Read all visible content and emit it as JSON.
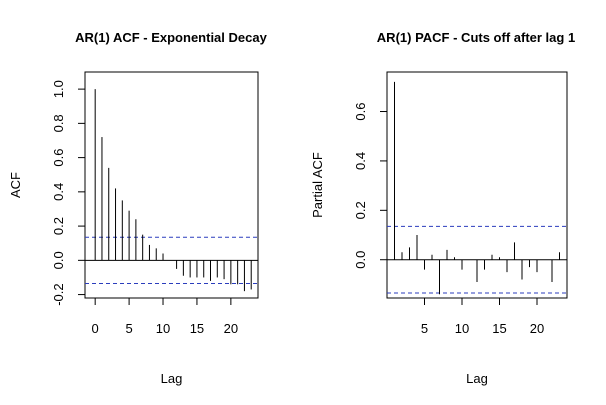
{
  "chart_data": [
    {
      "type": "bar",
      "title": "AR(1) ACF - Exponential Decay",
      "xlabel": "Lag",
      "ylabel": "ACF",
      "x_ticks": [
        0,
        5,
        10,
        15,
        20
      ],
      "y_ticks": [
        -0.2,
        0.0,
        0.2,
        0.4,
        0.6,
        0.8,
        1.0
      ],
      "y_tick_labels": [
        "-0.2",
        "0.0",
        "0.2",
        "0.4",
        "0.6",
        "0.8",
        "1.0"
      ],
      "xlim": [
        -1.5,
        24
      ],
      "ylim": [
        -0.22,
        1.1
      ],
      "confidence_bounds": [
        0.135,
        -0.135
      ],
      "lags": [
        0,
        1,
        2,
        3,
        4,
        5,
        6,
        7,
        8,
        9,
        10,
        11,
        12,
        13,
        14,
        15,
        16,
        17,
        18,
        19,
        20,
        21,
        22,
        23
      ],
      "values": [
        1.0,
        0.72,
        0.54,
        0.42,
        0.35,
        0.29,
        0.24,
        0.15,
        0.09,
        0.07,
        0.04,
        0.0,
        -0.05,
        -0.09,
        -0.1,
        -0.1,
        -0.1,
        -0.12,
        -0.1,
        -0.11,
        -0.14,
        -0.14,
        -0.18,
        -0.17
      ]
    },
    {
      "type": "bar",
      "title": "AR(1) PACF - Cuts off after lag 1",
      "xlabel": "Lag",
      "ylabel": "Partial ACF",
      "x_ticks": [
        5,
        10,
        15,
        20
      ],
      "y_ticks": [
        0.0,
        0.2,
        0.4,
        0.6
      ],
      "y_tick_labels": [
        "0.0",
        "0.2",
        "0.4",
        "0.6"
      ],
      "xlim": [
        0,
        24
      ],
      "ylim": [
        -0.155,
        0.76
      ],
      "confidence_bounds": [
        0.135,
        -0.135
      ],
      "lags": [
        1,
        2,
        3,
        4,
        5,
        6,
        7,
        8,
        9,
        10,
        11,
        12,
        13,
        14,
        15,
        16,
        17,
        18,
        19,
        20,
        21,
        22,
        23
      ],
      "values": [
        0.72,
        0.03,
        0.05,
        0.1,
        -0.04,
        0.02,
        -0.14,
        0.04,
        0.01,
        -0.04,
        0.0,
        -0.09,
        -0.04,
        0.02,
        0.01,
        -0.05,
        0.07,
        -0.08,
        -0.03,
        -0.05,
        0.0,
        -0.09,
        0.03
      ]
    }
  ]
}
